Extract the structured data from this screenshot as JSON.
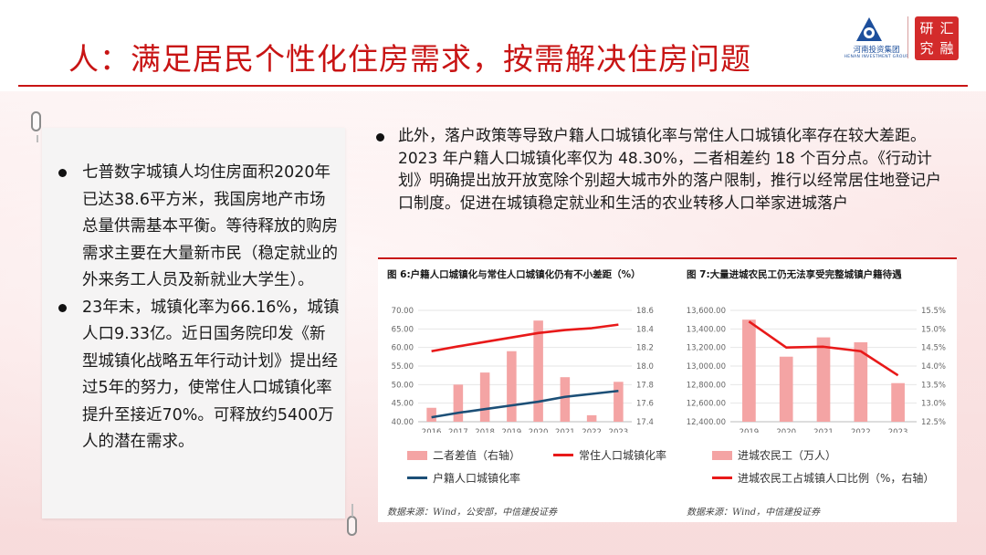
{
  "header": {
    "title": "人：满足居民个性化住房需求，按需解决住房问题",
    "logo_name": "河南投资集团",
    "logo_sub": "HENAN INVESTMENT GROUP",
    "seal_chars": [
      "研",
      "汇",
      "究",
      "融"
    ]
  },
  "left_panel": {
    "bullets": [
      "七普数字城镇人均住房面积2020年已达38.6平方米，我国房地产市场总量供需基本平衡。等待释放的购房需求主要在大量新市民（稳定就业的外来务工人员及新就业大学生）。",
      "23年末，城镇化率为66.16%，城镇人口9.33亿。近日国务院印发《新型城镇化战略五年行动计划》提出经过5年的努力，使常住人口城镇化率提升至接近70%。可释放约5400万人的潜在需求。"
    ]
  },
  "right_panel": {
    "paragraph": "此外，落户政策等导致户籍人口城镇化率与常住人口城镇化率存在较大差距。2023 年户籍人口城镇化率仅为 48.30%，二者相差约 18 个百分点。《行动计划》明确提出放开放宽除个别超大城市外的落户限制，推行以经常居住地登记户口制度。促进在城镇稳定就业和生活的农业转移人口举家进城落户"
  },
  "colors": {
    "accent_red": "#c81414",
    "bar_pink": "#f4a4a4",
    "line_red": "#e81919",
    "line_blue": "#1c4f77"
  },
  "chart_data": [
    {
      "type": "bar",
      "title": "图 6:户籍人口城镇化与常住人口城镇化仍有不小差距（%）",
      "categories": [
        "2016",
        "2017",
        "2018",
        "2019",
        "2020",
        "2021",
        "2022",
        "2023"
      ],
      "ylim": [
        40,
        70
      ],
      "y_ticks": [
        "40.00",
        "45.00",
        "50.00",
        "55.00",
        "60.00",
        "65.00",
        "70.00"
      ],
      "y2lim": [
        17.4,
        18.6
      ],
      "y2_ticks": [
        "17.4",
        "17.6",
        "17.8",
        "18.0",
        "18.2",
        "18.4",
        "18.6"
      ],
      "series": [
        {
          "name": "二者差值（右轴）",
          "kind": "bar",
          "axis": "right",
          "values": [
            17.55,
            17.8,
            17.93,
            18.16,
            18.49,
            17.88,
            17.47,
            17.83
          ]
        },
        {
          "name": "常住人口城镇化率",
          "kind": "line",
          "axis": "left",
          "values": [
            59.0,
            60.3,
            61.5,
            62.7,
            63.9,
            64.7,
            65.2,
            66.16
          ]
        },
        {
          "name": "户籍人口城镇化率",
          "kind": "line",
          "axis": "left",
          "values": [
            41.2,
            42.4,
            43.4,
            44.4,
            45.4,
            46.7,
            47.5,
            48.3
          ]
        }
      ],
      "source": "数据来源：Wind，公安部，中信建投证券"
    },
    {
      "type": "bar",
      "title": "图 7:大量进城农民工仍无法享受完整城镇户籍待遇",
      "categories": [
        "2019",
        "2020",
        "2021",
        "2022",
        "2023"
      ],
      "ylim": [
        12400,
        13600
      ],
      "y_ticks": [
        "12,400.00",
        "12,600.00",
        "12,800.00",
        "13,000.00",
        "13,200.00",
        "13,400.00",
        "13,600.00"
      ],
      "y2lim": [
        12.5,
        15.5
      ],
      "y2_ticks": [
        "12.5%",
        "13.0%",
        "13.5%",
        "14.0%",
        "14.5%",
        "15.0%",
        "15.5%"
      ],
      "series": [
        {
          "name": "进城农民工（万人）",
          "kind": "bar",
          "axis": "left",
          "values": [
            13500,
            13101,
            13309,
            13256,
            12816
          ]
        },
        {
          "name": "进城农民工占城镇人口比例（%，右轴）",
          "kind": "line",
          "axis": "right",
          "values": [
            15.2,
            14.5,
            14.52,
            14.4,
            13.75
          ]
        }
      ],
      "source": "数据来源：Wind，中信建投证券"
    }
  ]
}
